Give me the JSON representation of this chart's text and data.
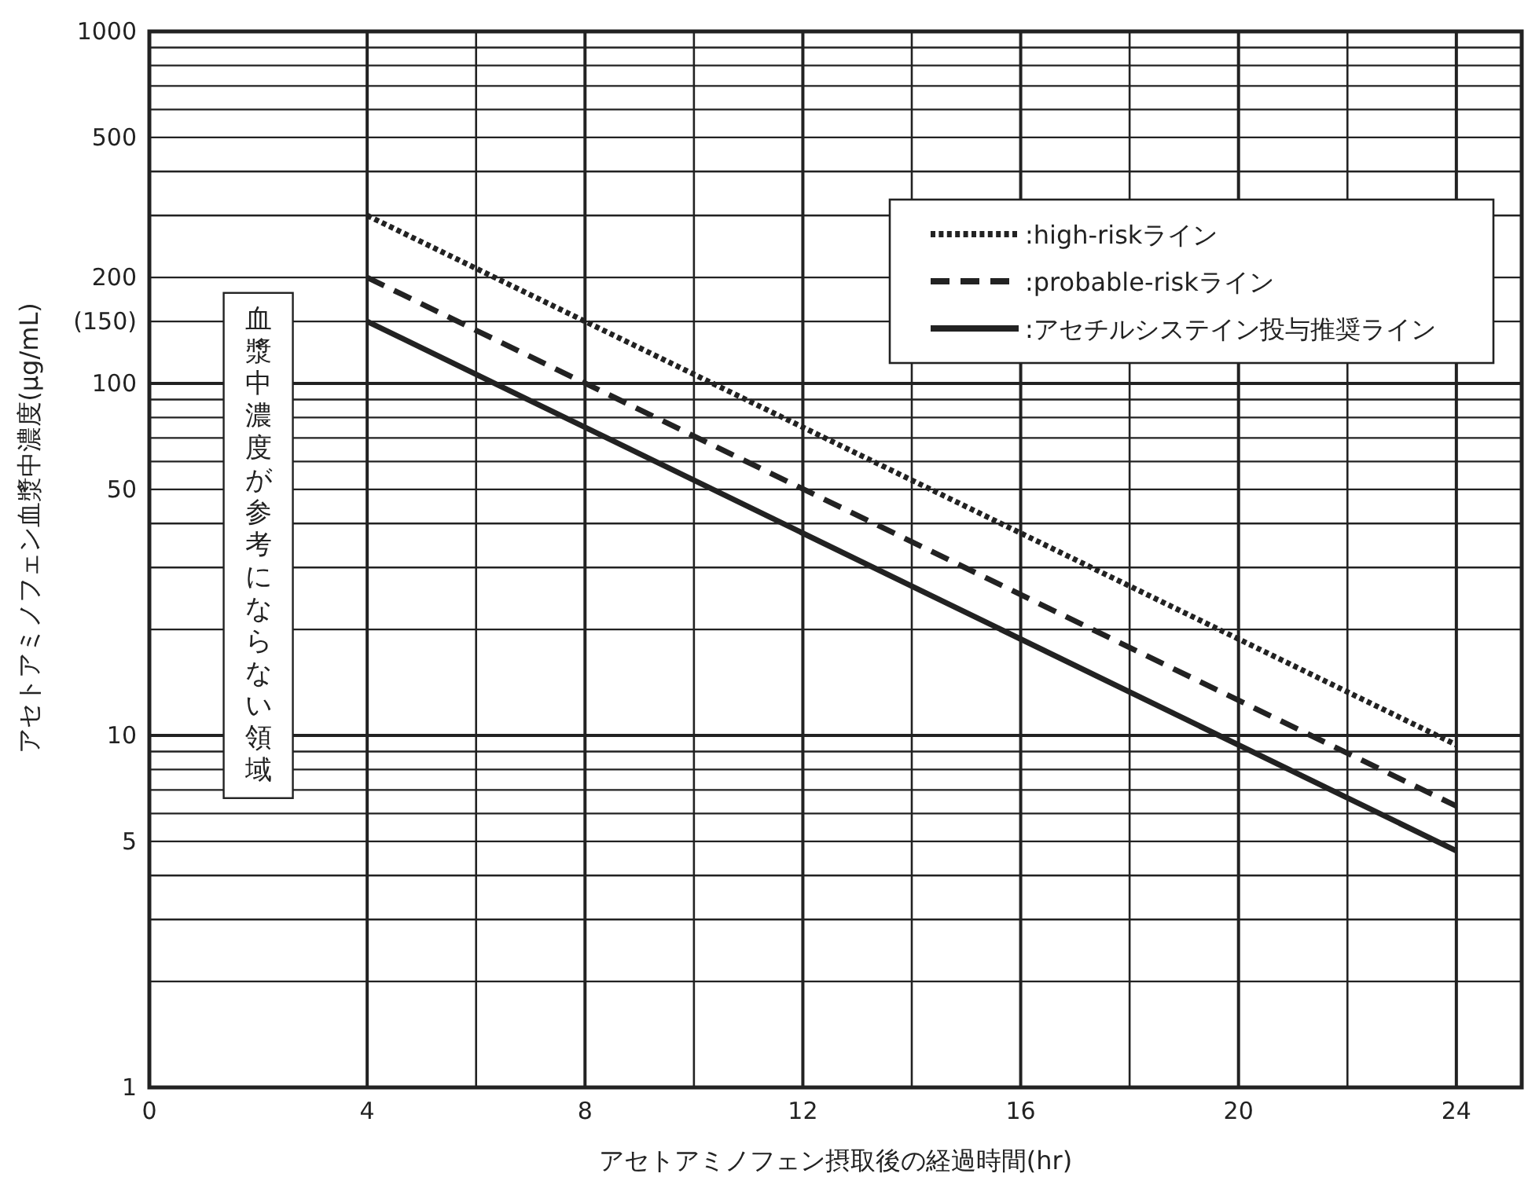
{
  "chart_data": {
    "type": "line",
    "xlabel": "アセトアミノフェン摂取後の経過時間(hr)",
    "ylabel": "アセトアミノフェン血漿中濃度(μg/mL)",
    "log": "y",
    "xlim": [
      0,
      25.2
    ],
    "ylim": [
      1,
      1000
    ],
    "xticks": [
      0,
      4,
      {
        "value": 6,
        "label": null
      },
      8,
      {
        "value": 10,
        "label": null
      },
      12,
      {
        "value": 14,
        "label": null
      },
      16,
      {
        "value": 18,
        "label": null
      },
      20,
      {
        "value": 22,
        "label": null
      },
      24
    ],
    "yticks": [
      1,
      {
        "value": 2,
        "label": null
      },
      {
        "value": 3,
        "label": null
      },
      {
        "value": 4,
        "label": null
      },
      5,
      {
        "value": 6,
        "label": null
      },
      {
        "value": 7,
        "label": null
      },
      {
        "value": 8,
        "label": null
      },
      {
        "value": 9,
        "label": null
      },
      10,
      {
        "value": 20,
        "label": null
      },
      {
        "value": 30,
        "label": null
      },
      {
        "value": 40,
        "label": null
      },
      50,
      {
        "value": 60,
        "label": null
      },
      {
        "value": 70,
        "label": null
      },
      {
        "value": 80,
        "label": null
      },
      {
        "value": 90,
        "label": null
      },
      100,
      {
        "value": 150,
        "label": "(150)"
      },
      200,
      {
        "value": 300,
        "label": null
      },
      {
        "value": 400,
        "label": null
      },
      500,
      {
        "value": 600,
        "label": null
      },
      {
        "value": 700,
        "label": null
      },
      {
        "value": 800,
        "label": null
      },
      {
        "value": 900,
        "label": null
      },
      1000
    ],
    "grid": true,
    "legend": "top right",
    "x": [
      4,
      24
    ],
    "annotations": [
      "血漿中濃度が参考にならない領域"
    ],
    "series": [
      {
        "name": ":high-riskライン",
        "color": "#222222",
        "line_style": "dotted",
        "values": [
          300,
          9.4
        ]
      },
      {
        "name": ":probable-riskライン",
        "color": "#222222",
        "line_style": "dashed",
        "values": [
          200,
          6.3
        ]
      },
      {
        "name": ":アセチルシステイン投与推奨ライン",
        "color": "#222222",
        "line_style": "solid",
        "values": [
          150,
          4.7
        ]
      }
    ]
  }
}
